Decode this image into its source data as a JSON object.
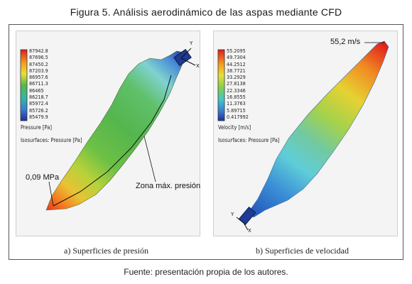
{
  "figure": {
    "title": "Figura 5. Análisis aerodinámico de las aspas mediante CFD",
    "source": "Fuente: presentación propia de los autores."
  },
  "panel_a": {
    "caption": "a) Superficies de presión",
    "legend_values": [
      "87942.8",
      "87696.5",
      "87450.2",
      "87203.9",
      "86957.6",
      "86711.3",
      "86465",
      "86218.7",
      "85972.4",
      "85726.2",
      "85479.9"
    ],
    "legend_title": "Pressure [Pa]",
    "isosurface_label": "Isosurfaces: Pressure [Pa]",
    "annotation_value": "0,09 MPa",
    "annotation_zone": "Zona máx. presión",
    "axis_y": "Y",
    "axis_x": "X"
  },
  "panel_b": {
    "caption": "b) Superficies de velocidad",
    "legend_values": [
      "55.2095",
      "49.7304",
      "44.2512",
      "38.7721",
      "33.2929",
      "27.8138",
      "22.3346",
      "16.8555",
      "11.3763",
      "5.89715",
      "0.417992"
    ],
    "legend_title": "Velocity [m/s]",
    "isosurface_label": "Isosurfaces: Pressure [Pa]",
    "annotation_value": "55,2 m/s",
    "axis_y": "Y",
    "axis_x": "X"
  }
}
